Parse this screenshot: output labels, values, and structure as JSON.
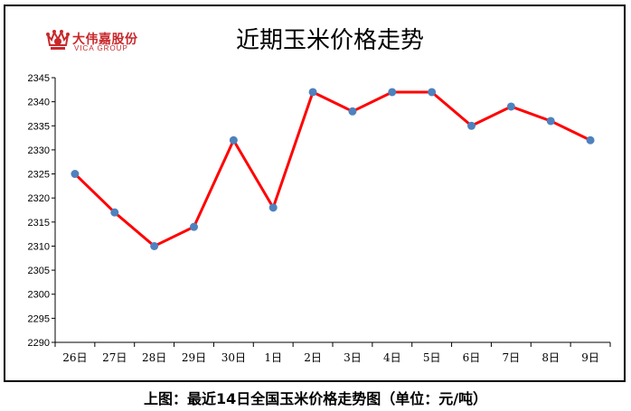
{
  "logo": {
    "name_cn": "大伟嘉股份",
    "name_en": "VICA GROUP",
    "color": "#c8282c"
  },
  "caption": "上图：最近14日全国玉米价格走势图（单位：元/吨）",
  "chart_data": {
    "type": "line",
    "title": "近期玉米价格走势",
    "categories": [
      "26日",
      "27日",
      "28日",
      "29日",
      "30日",
      "1日",
      "2日",
      "3日",
      "4日",
      "5日",
      "6日",
      "7日",
      "8日",
      "9日"
    ],
    "series": [
      {
        "values": [
          2325,
          2317,
          2310,
          2314,
          2332,
          2318,
          2342,
          2338,
          2342,
          2342,
          2335,
          2339,
          2336,
          2332
        ]
      }
    ],
    "ylim": [
      2290,
      2345
    ],
    "ytick_step": 5,
    "grid": false,
    "line_color": "#ff0000",
    "marker_color": "#4f81bd"
  }
}
